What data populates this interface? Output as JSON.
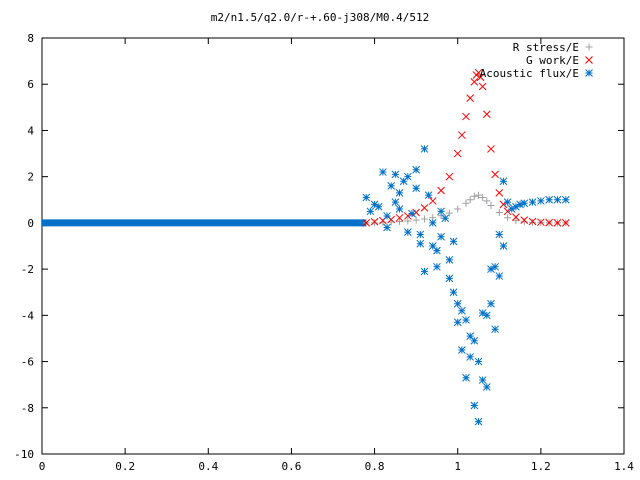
{
  "chart_data": {
    "type": "scatter",
    "title": "m2/n1.5/q2.0/r-+.60-j308/M0.4/512",
    "xlabel": "",
    "ylabel": "",
    "xlim": [
      0,
      1.4
    ],
    "ylim": [
      -10,
      8
    ],
    "x_ticks": [
      "0",
      "0.2",
      "0.4",
      "0.6",
      "0.8",
      "1",
      "1.2",
      "1.4"
    ],
    "y_ticks": [
      "-10",
      "-8",
      "-6",
      "-4",
      "-2",
      "0",
      "2",
      "4",
      "6",
      "8"
    ],
    "grid": false,
    "legend_position": "top-right",
    "series": [
      {
        "name": "R stress/E",
        "marker": "plus",
        "color": "#a0a0a4",
        "x": [
          0.78,
          0.8,
          0.82,
          0.84,
          0.86,
          0.88,
          0.9,
          0.92,
          0.94,
          0.96,
          0.98,
          1.0,
          1.02,
          1.03,
          1.04,
          1.05,
          1.06,
          1.07,
          1.08,
          1.1,
          1.12,
          1.14,
          1.16,
          1.18,
          1.2,
          1.22,
          1.24,
          1.26
        ],
        "y": [
          0.0,
          0.0,
          0.02,
          0.04,
          0.06,
          0.08,
          0.12,
          0.17,
          0.23,
          0.31,
          0.42,
          0.6,
          0.85,
          1.0,
          1.15,
          1.2,
          1.1,
          0.95,
          0.75,
          0.45,
          0.22,
          0.1,
          0.05,
          0.02,
          0.01,
          0.0,
          0.0,
          0.0
        ]
      },
      {
        "name": "G work/E",
        "marker": "cross",
        "color": "#ff0000",
        "x": [
          0.78,
          0.8,
          0.82,
          0.84,
          0.86,
          0.88,
          0.9,
          0.92,
          0.94,
          0.96,
          0.98,
          1.0,
          1.01,
          1.02,
          1.03,
          1.04,
          1.045,
          1.05,
          1.055,
          1.06,
          1.07,
          1.08,
          1.09,
          1.1,
          1.11,
          1.12,
          1.14,
          1.16,
          1.18,
          1.2,
          1.22,
          1.24,
          1.26
        ],
        "y": [
          0.0,
          0.05,
          0.1,
          0.15,
          0.22,
          0.3,
          0.45,
          0.65,
          0.95,
          1.4,
          2.0,
          3.0,
          3.8,
          4.6,
          5.4,
          6.1,
          6.4,
          6.5,
          6.3,
          5.9,
          4.7,
          3.2,
          2.1,
          1.3,
          0.8,
          0.5,
          0.25,
          0.12,
          0.06,
          0.03,
          0.01,
          0.0,
          0.0
        ]
      },
      {
        "name": "Acoustic flux/E",
        "marker": "star",
        "color": "#0070c8",
        "x": [
          0.78,
          0.79,
          0.8,
          0.81,
          0.82,
          0.83,
          0.84,
          0.85,
          0.86,
          0.87,
          0.88,
          0.89,
          0.9,
          0.91,
          0.92,
          0.93,
          0.94,
          0.95,
          0.96,
          0.97,
          0.98,
          0.99,
          1.0,
          1.01,
          1.02,
          1.03,
          1.04,
          1.05,
          1.06,
          1.07,
          1.08,
          1.09,
          1.1,
          1.11,
          1.12,
          1.13,
          1.14,
          1.15,
          1.16,
          1.18,
          1.2,
          1.22,
          1.24,
          1.26,
          0.83,
          0.86,
          0.88,
          0.9,
          0.92,
          0.94,
          0.96,
          0.98,
          1.0,
          1.02,
          1.04,
          1.06,
          1.08,
          1.1,
          0.85,
          0.91,
          0.95,
          0.99,
          1.01,
          1.03,
          1.05,
          1.07,
          1.09,
          1.11
        ],
        "y": [
          1.1,
          0.5,
          0.8,
          0.7,
          2.2,
          0.3,
          1.6,
          0.9,
          0.6,
          1.8,
          2.0,
          0.4,
          1.5,
          -0.5,
          3.2,
          1.2,
          -1.0,
          -1.9,
          0.5,
          0.2,
          -2.4,
          -0.8,
          -3.5,
          -5.5,
          -4.2,
          -5.8,
          -7.9,
          -8.6,
          -6.8,
          -4.0,
          -3.5,
          -1.9,
          -0.5,
          1.8,
          0.9,
          0.6,
          0.7,
          0.8,
          0.85,
          0.9,
          0.95,
          1.0,
          1.0,
          1.0,
          -0.2,
          1.3,
          -0.4,
          2.3,
          -2.1,
          0.0,
          -0.6,
          -1.6,
          -4.3,
          -6.7,
          -5.1,
          -3.9,
          -2.0,
          -2.3,
          2.1,
          -0.9,
          -1.2,
          -3.0,
          -3.8,
          -4.9,
          -6.0,
          -7.1,
          -4.6,
          -1.0
        ]
      }
    ]
  }
}
